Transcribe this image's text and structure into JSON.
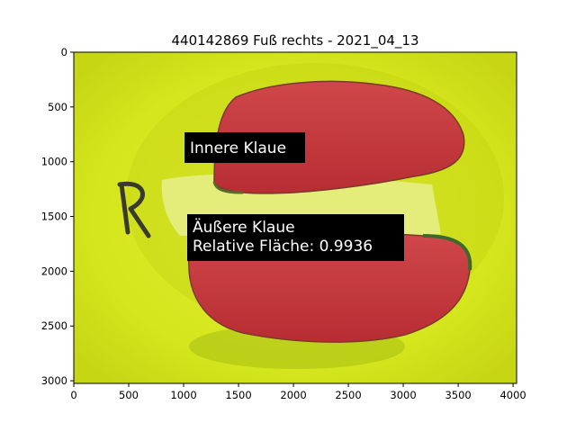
{
  "figure": {
    "title": "440142869 Fuß rechts - 2021_04_13",
    "x_ticks": [
      "0",
      "500",
      "1000",
      "1500",
      "2000",
      "2500",
      "3000",
      "3500",
      "4000"
    ],
    "y_ticks": [
      "0",
      "500",
      "1000",
      "1500",
      "2000",
      "2500",
      "3000"
    ]
  },
  "image": {
    "background_color": "#d6ea1a",
    "overlay_color": "#c8323a",
    "handwritten_mark": "R"
  },
  "annotations": {
    "inner_claw_label": "Innere Klaue",
    "outer_claw_label": "Äußere Klaue",
    "relative_area_label": "Relative Fläche: 0.9936"
  }
}
